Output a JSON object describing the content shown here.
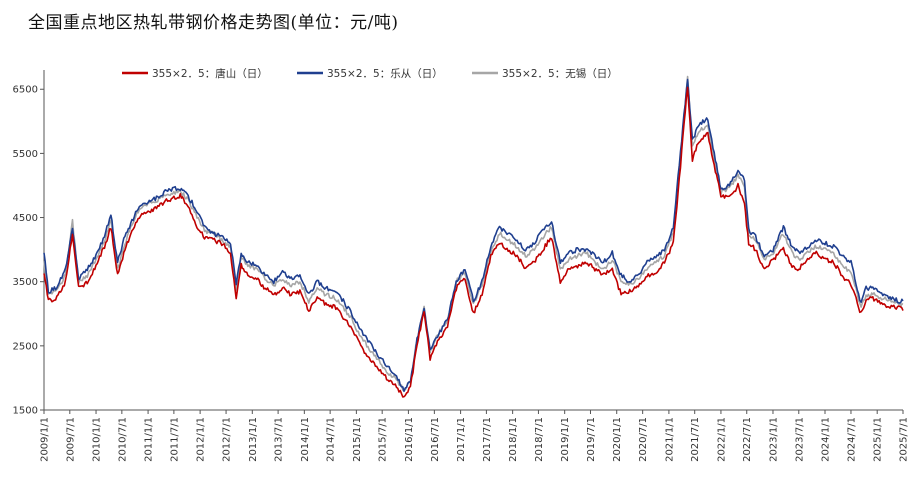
{
  "chart_data": {
    "type": "line",
    "title": "全国重点地区热轧带钢价格走势图(单位：元/吨)",
    "xlabel": "",
    "ylabel": "",
    "ylim": [
      1500,
      6800
    ],
    "xlim": [
      "2009-01-01",
      "2025-07-01"
    ],
    "y_ticks": [
      1500,
      2500,
      3500,
      4500,
      5500,
      6500
    ],
    "x_ticks": [
      "2009/1/1",
      "2009/7/1",
      "2010/1/1",
      "2010/7/1",
      "2011/1/1",
      "2011/7/1",
      "2012/1/1",
      "2012/7/1",
      "2013/1/1",
      "2013/7/1",
      "2014/1/1",
      "2014/7/1",
      "2015/1/1",
      "2015/7/1",
      "2016/1/1",
      "2016/7/1",
      "2017/1/1",
      "2017/7/1",
      "2018/1/1",
      "2018/7/1",
      "2019/1/1",
      "2019/7/1",
      "2020/1/1",
      "2020/7/1",
      "2021/1/1",
      "2021/7/1",
      "2022/1/1",
      "2022/7/1",
      "2023/1/1",
      "2023/7/1",
      "2024/1/1",
      "2024/7/1",
      "2025/1/1",
      "2025/7/1"
    ],
    "grid": false,
    "legend_position": "top",
    "dates": [
      "2009-01-01",
      "2009-02-01",
      "2009-04-01",
      "2009-06-01",
      "2009-07-20",
      "2009-09-01",
      "2009-11-01",
      "2010-01-01",
      "2010-03-01",
      "2010-04-15",
      "2010-06-01",
      "2010-07-15",
      "2010-09-01",
      "2010-11-01",
      "2011-01-01",
      "2011-03-01",
      "2011-05-01",
      "2011-07-01",
      "2011-08-15",
      "2011-10-01",
      "2011-12-01",
      "2012-02-01",
      "2012-04-01",
      "2012-06-01",
      "2012-08-01",
      "2012-09-10",
      "2012-10-15",
      "2012-12-01",
      "2013-02-01",
      "2013-04-01",
      "2013-06-01",
      "2013-08-01",
      "2013-10-01",
      "2013-12-01",
      "2014-02-01",
      "2014-04-01",
      "2014-06-01",
      "2014-08-01",
      "2014-10-01",
      "2014-12-01",
      "2015-02-01",
      "2015-04-01",
      "2015-06-01",
      "2015-08-01",
      "2015-10-01",
      "2015-12-01",
      "2016-01-15",
      "2016-03-01",
      "2016-04-20",
      "2016-06-01",
      "2016-08-01",
      "2016-10-01",
      "2016-12-01",
      "2017-02-01",
      "2017-04-01",
      "2017-06-01",
      "2017-08-01",
      "2017-10-01",
      "2017-12-01",
      "2018-02-01",
      "2018-04-01",
      "2018-06-01",
      "2018-08-01",
      "2018-10-01",
      "2018-12-01",
      "2019-02-01",
      "2019-04-01",
      "2019-06-01",
      "2019-08-01",
      "2019-10-01",
      "2019-12-01",
      "2020-02-01",
      "2020-04-01",
      "2020-06-01",
      "2020-08-01",
      "2020-10-01",
      "2020-12-01",
      "2021-02-01",
      "2021-03-15",
      "2021-05-12",
      "2021-06-15",
      "2021-08-01",
      "2021-10-01",
      "2021-11-15",
      "2022-01-01",
      "2022-03-01",
      "2022-05-01",
      "2022-06-15",
      "2022-07-15",
      "2022-09-01",
      "2022-11-01",
      "2023-01-01",
      "2023-03-15",
      "2023-05-15",
      "2023-07-01",
      "2023-09-01",
      "2023-11-01",
      "2024-01-01",
      "2024-03-01",
      "2024-05-01",
      "2024-07-01",
      "2024-09-10",
      "2024-10-15",
      "2024-12-01",
      "2025-02-01",
      "2025-04-01",
      "2025-06-01",
      "2025-07-01"
    ],
    "series": [
      {
        "name": "355×2．5：唐山（日）",
        "color": "#c00000",
        "values": [
          3650,
          3200,
          3250,
          3500,
          4250,
          3400,
          3500,
          3750,
          4050,
          4350,
          3600,
          3950,
          4250,
          4500,
          4600,
          4650,
          4750,
          4800,
          4850,
          4700,
          4400,
          4200,
          4150,
          4100,
          3950,
          3250,
          3750,
          3600,
          3550,
          3400,
          3300,
          3400,
          3300,
          3350,
          3050,
          3250,
          3150,
          3100,
          2950,
          2750,
          2500,
          2300,
          2150,
          2000,
          1900,
          1700,
          1850,
          2500,
          3050,
          2300,
          2600,
          2800,
          3400,
          3550,
          3000,
          3300,
          3900,
          4100,
          4000,
          3900,
          3700,
          3800,
          4000,
          4200,
          3500,
          3700,
          3750,
          3800,
          3700,
          3600,
          3700,
          3300,
          3350,
          3450,
          3600,
          3600,
          3800,
          4100,
          5100,
          6550,
          5400,
          5700,
          5800,
          5300,
          4850,
          4800,
          5000,
          4700,
          4100,
          4000,
          3700,
          3850,
          4000,
          3750,
          3700,
          3850,
          3950,
          3850,
          3800,
          3600,
          3450,
          3000,
          3200,
          3250,
          3150,
          3100,
          3100,
          3050
        ]
      },
      {
        "name": "355×2．5：乐从（日）",
        "color": "#1f3f8f",
        "values": [
          3950,
          3350,
          3400,
          3700,
          4350,
          3550,
          3700,
          3900,
          4200,
          4550,
          3800,
          4150,
          4400,
          4700,
          4750,
          4800,
          4900,
          4950,
          4950,
          4850,
          4650,
          4350,
          4250,
          4200,
          4100,
          3450,
          3950,
          3800,
          3750,
          3600,
          3500,
          3650,
          3550,
          3600,
          3300,
          3500,
          3400,
          3350,
          3200,
          3000,
          2750,
          2550,
          2350,
          2200,
          2050,
          1800,
          1950,
          2600,
          3100,
          2450,
          2700,
          2900,
          3500,
          3700,
          3200,
          3500,
          4050,
          4350,
          4250,
          4150,
          4000,
          4100,
          4300,
          4450,
          3800,
          3950,
          4000,
          4000,
          3900,
          3800,
          3950,
          3600,
          3500,
          3600,
          3800,
          3900,
          4000,
          4350,
          5350,
          6650,
          5700,
          5950,
          6050,
          5500,
          4950,
          5000,
          5250,
          5100,
          4300,
          4200,
          3900,
          4000,
          4350,
          4050,
          3950,
          4050,
          4150,
          4100,
          4050,
          3900,
          3800,
          3150,
          3400,
          3400,
          3300,
          3250,
          3200,
          3200
        ]
      },
      {
        "name": "355×2．5：无锡（日）",
        "color": "#a6a6a6",
        "values": [
          3800,
          3300,
          3350,
          3600,
          4450,
          3500,
          3600,
          3850,
          4150,
          4450,
          3700,
          4050,
          4350,
          4650,
          4700,
          4750,
          4850,
          4900,
          4900,
          4800,
          4550,
          4300,
          4250,
          4150,
          4050,
          3400,
          3900,
          3750,
          3700,
          3550,
          3450,
          3550,
          3450,
          3500,
          3200,
          3400,
          3300,
          3250,
          3100,
          2900,
          2650,
          2450,
          2300,
          2100,
          2000,
          1800,
          1950,
          2600,
          3100,
          2400,
          2700,
          2900,
          3500,
          3650,
          3150,
          3450,
          3950,
          4250,
          4150,
          4050,
          3900,
          4000,
          4200,
          4350,
          3700,
          3850,
          3900,
          3950,
          3800,
          3700,
          3850,
          3500,
          3450,
          3550,
          3700,
          3800,
          3900,
          4250,
          5250,
          6700,
          5600,
          5850,
          5950,
          5400,
          4900,
          4950,
          5150,
          5000,
          4250,
          4150,
          3850,
          3950,
          4250,
          3950,
          3850,
          3950,
          4050,
          4000,
          3950,
          3750,
          3650,
          3100,
          3300,
          3300,
          3250,
          3200,
          3150,
          3150
        ]
      }
    ]
  }
}
